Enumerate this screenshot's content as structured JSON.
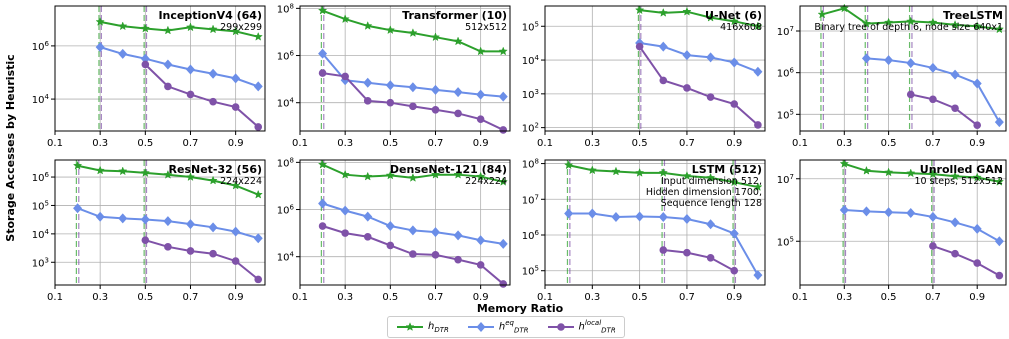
{
  "figure": {
    "ylabel": "Storage Accesses by Heuristic",
    "xlabel": "Memory Ratio"
  },
  "legend": {
    "items": [
      {
        "base": "h",
        "sub": "DTR",
        "sup": "",
        "color": "#2ca02c",
        "marker": "star"
      },
      {
        "base": "h",
        "sub": "DTR",
        "sup": "eq",
        "color": "#6b8ee8",
        "marker": "diamond"
      },
      {
        "base": "h",
        "sub": "DTR",
        "sup": "local",
        "color": "#7f52a8",
        "marker": "circle"
      }
    ]
  },
  "chart_data": [
    {
      "type": "line",
      "title": "InceptionV4 (64)",
      "subtitle": [
        "299x299"
      ],
      "yscale": "log",
      "ylim_exp": [
        2.8,
        7.5
      ],
      "yticks": [
        {
          "exp": 4,
          "label": "10^4"
        },
        {
          "exp": 6,
          "label": "10^6"
        }
      ],
      "xticks": [
        "0.1",
        "0.3",
        "0.5",
        "0.7",
        "0.9"
      ],
      "xlim": [
        0.1,
        1.03
      ],
      "vlines": [
        0.3,
        0.5
      ],
      "series": [
        {
          "name": "h_DTR",
          "color": "#2ca02c",
          "marker": "star",
          "x": [
            0.3,
            0.4,
            0.5,
            0.6,
            0.7,
            0.8,
            0.9,
            1.0
          ],
          "y": [
            8000000,
            5500000,
            4500000,
            3800000,
            5000000,
            4200000,
            3500000,
            2200000
          ]
        },
        {
          "name": "h_DTR^eq",
          "color": "#6b8ee8",
          "marker": "diamond",
          "x": [
            0.3,
            0.4,
            0.5,
            0.6,
            0.7,
            0.8,
            0.9,
            1.0
          ],
          "y": [
            900000,
            500000,
            330000,
            200000,
            130000,
            90000,
            60000,
            30000
          ]
        },
        {
          "name": "h_DTR^local",
          "color": "#7f52a8",
          "marker": "circle",
          "x": [
            0.5,
            0.6,
            0.7,
            0.8,
            0.9,
            1.0
          ],
          "y": [
            200000,
            30000,
            15000,
            8000,
            5000,
            900
          ]
        }
      ]
    },
    {
      "type": "line",
      "title": "Transformer (10)",
      "subtitle": [
        "512x512"
      ],
      "yscale": "log",
      "ylim_exp": [
        2.8,
        8.1
      ],
      "yticks": [
        {
          "exp": 4,
          "label": "10^4"
        },
        {
          "exp": 6,
          "label": "10^6"
        },
        {
          "exp": 8,
          "label": "10^8"
        }
      ],
      "xticks": [
        "0.1",
        "0.3",
        "0.5",
        "0.7",
        "0.9"
      ],
      "xlim": [
        0.1,
        1.03
      ],
      "vlines": [
        0.2
      ],
      "series": [
        {
          "name": "h_DTR",
          "color": "#2ca02c",
          "marker": "star",
          "x": [
            0.2,
            0.3,
            0.4,
            0.5,
            0.6,
            0.7,
            0.8,
            0.9,
            1.0
          ],
          "y": [
            80000000,
            35000000,
            18000000,
            12000000,
            9000000,
            6000000,
            4000000,
            1500000,
            1500000
          ]
        },
        {
          "name": "h_DTR^eq",
          "color": "#6b8ee8",
          "marker": "diamond",
          "x": [
            0.2,
            0.3,
            0.4,
            0.5,
            0.6,
            0.7,
            0.8,
            0.9,
            1.0
          ],
          "y": [
            1200000,
            90000,
            70000,
            55000,
            45000,
            35000,
            28000,
            22000,
            18000
          ]
        },
        {
          "name": "h_DTR^local",
          "color": "#7f52a8",
          "marker": "circle",
          "x": [
            0.2,
            0.3,
            0.4,
            0.5,
            0.6,
            0.7,
            0.8,
            0.9,
            1.0
          ],
          "y": [
            180000,
            130000,
            12000,
            10000,
            7000,
            5000,
            3500,
            2000,
            700
          ]
        }
      ]
    },
    {
      "type": "line",
      "title": "U-Net (6)",
      "subtitle": [
        "416x608"
      ],
      "yscale": "log",
      "ylim_exp": [
        1.9,
        5.6
      ],
      "yticks": [
        {
          "exp": 2,
          "label": "10^2"
        },
        {
          "exp": 3,
          "label": "10^3"
        },
        {
          "exp": 4,
          "label": "10^4"
        },
        {
          "exp": 5,
          "label": "10^5"
        }
      ],
      "xticks": [
        "0.1",
        "0.3",
        "0.5",
        "0.7",
        "0.9"
      ],
      "xlim": [
        0.1,
        1.03
      ],
      "vlines": [
        0.5
      ],
      "series": [
        {
          "name": "h_DTR",
          "color": "#2ca02c",
          "marker": "star",
          "x": [
            0.5,
            0.6,
            0.7,
            0.8,
            0.9,
            1.0
          ],
          "y": [
            300000,
            250000,
            270000,
            180000,
            140000,
            100000
          ]
        },
        {
          "name": "h_DTR^eq",
          "color": "#6b8ee8",
          "marker": "diamond",
          "x": [
            0.5,
            0.6,
            0.7,
            0.8,
            0.9,
            1.0
          ],
          "y": [
            32000,
            25000,
            14000,
            12000,
            8500,
            4500
          ]
        },
        {
          "name": "h_DTR^local",
          "color": "#7f52a8",
          "marker": "circle",
          "x": [
            0.5,
            0.6,
            0.7,
            0.8,
            0.9,
            1.0
          ],
          "y": [
            25000,
            2500,
            1500,
            800,
            500,
            120
          ]
        }
      ]
    },
    {
      "type": "line",
      "title": "TreeLSTM",
      "subtitle": [
        "Binary tree of depth 6, node size 640x1"
      ],
      "yscale": "log",
      "ylim_exp": [
        4.6,
        7.6
      ],
      "yticks": [
        {
          "exp": 5,
          "label": "10^5"
        },
        {
          "exp": 6,
          "label": "10^6"
        },
        {
          "exp": 7,
          "label": "10^7"
        }
      ],
      "xticks": [
        "0.1",
        "0.3",
        "0.5",
        "0.7",
        "0.9"
      ],
      "xlim": [
        0.1,
        1.03
      ],
      "vlines": [
        0.2,
        0.4,
        0.6
      ],
      "series": [
        {
          "name": "h_DTR",
          "color": "#2ca02c",
          "marker": "star",
          "x": [
            0.2,
            0.3,
            0.4,
            0.5,
            0.6,
            0.7,
            0.8,
            0.9,
            1.0
          ],
          "y": [
            25000000,
            35000000,
            15000000,
            16000000,
            17000000,
            16000000,
            14000000,
            13000000,
            11000000
          ]
        },
        {
          "name": "h_DTR^eq",
          "color": "#6b8ee8",
          "marker": "diamond",
          "x": [
            0.4,
            0.5,
            0.6,
            0.7,
            0.8,
            0.9,
            1.0
          ],
          "y": [
            2200000,
            2000000,
            1700000,
            1300000,
            900000,
            550000,
            65000
          ]
        },
        {
          "name": "h_DTR^local",
          "color": "#7f52a8",
          "marker": "circle",
          "x": [
            0.6,
            0.7,
            0.8,
            0.9
          ],
          "y": [
            300000,
            230000,
            140000,
            55000
          ]
        }
      ]
    },
    {
      "type": "line",
      "title": "ResNet-32 (56)",
      "subtitle": [
        "224x224"
      ],
      "yscale": "log",
      "ylim_exp": [
        2.2,
        6.6
      ],
      "yticks": [
        {
          "exp": 3,
          "label": "10^3"
        },
        {
          "exp": 4,
          "label": "10^4"
        },
        {
          "exp": 5,
          "label": "10^5"
        },
        {
          "exp": 6,
          "label": "10^6"
        }
      ],
      "xticks": [
        "0.1",
        "0.3",
        "0.5",
        "0.7",
        "0.9"
      ],
      "xlim": [
        0.1,
        1.03
      ],
      "vlines": [
        0.2,
        0.5
      ],
      "series": [
        {
          "name": "h_DTR",
          "color": "#2ca02c",
          "marker": "star",
          "x": [
            0.2,
            0.3,
            0.4,
            0.5,
            0.6,
            0.7,
            0.8,
            0.9,
            1.0
          ],
          "y": [
            2500000,
            1700000,
            1600000,
            1400000,
            1200000,
            1000000,
            750000,
            500000,
            240000
          ]
        },
        {
          "name": "h_DTR^eq",
          "color": "#6b8ee8",
          "marker": "diamond",
          "x": [
            0.2,
            0.3,
            0.4,
            0.5,
            0.6,
            0.7,
            0.8,
            0.9,
            1.0
          ],
          "y": [
            80000,
            40000,
            35000,
            32000,
            28000,
            22000,
            17000,
            12000,
            7000
          ]
        },
        {
          "name": "h_DTR^local",
          "color": "#7f52a8",
          "marker": "circle",
          "x": [
            0.5,
            0.6,
            0.7,
            0.8,
            0.9,
            1.0
          ],
          "y": [
            6000,
            3500,
            2500,
            2000,
            1100,
            250
          ]
        }
      ]
    },
    {
      "type": "line",
      "title": "DenseNet-121 (84)",
      "subtitle": [
        "224x224"
      ],
      "yscale": "log",
      "ylim_exp": [
        2.8,
        8.1
      ],
      "yticks": [
        {
          "exp": 4,
          "label": "10^4"
        },
        {
          "exp": 6,
          "label": "10^6"
        },
        {
          "exp": 8,
          "label": "10^8"
        }
      ],
      "xticks": [
        "0.1",
        "0.3",
        "0.5",
        "0.7",
        "0.9"
      ],
      "xlim": [
        0.1,
        1.03
      ],
      "vlines": [
        0.2
      ],
      "series": [
        {
          "name": "h_DTR",
          "color": "#2ca02c",
          "marker": "star",
          "x": [
            0.2,
            0.3,
            0.4,
            0.5,
            0.6,
            0.7,
            0.8,
            0.9,
            1.0
          ],
          "y": [
            80000000,
            30000000,
            25000000,
            28000000,
            22000000,
            30000000,
            30000000,
            25000000,
            15000000
          ]
        },
        {
          "name": "h_DTR^eq",
          "color": "#6b8ee8",
          "marker": "diamond",
          "x": [
            0.2,
            0.3,
            0.4,
            0.5,
            0.6,
            0.7,
            0.8,
            0.9,
            1.0
          ],
          "y": [
            1800000,
            900000,
            500000,
            200000,
            130000,
            110000,
            80000,
            50000,
            35000
          ]
        },
        {
          "name": "h_DTR^local",
          "color": "#7f52a8",
          "marker": "circle",
          "x": [
            0.2,
            0.3,
            0.4,
            0.5,
            0.6,
            0.7,
            0.8,
            0.9,
            1.0
          ],
          "y": [
            200000,
            100000,
            70000,
            30000,
            13000,
            12000,
            7500,
            4500,
            700
          ]
        }
      ]
    },
    {
      "type": "line",
      "title": "LSTM (512)",
      "subtitle": [
        "Input dimension 512,",
        "Hidden dimension 1700,",
        "Sequence length 128"
      ],
      "yscale": "log",
      "ylim_exp": [
        4.6,
        8.1
      ],
      "yticks": [
        {
          "exp": 5,
          "label": "10^5"
        },
        {
          "exp": 6,
          "label": "10^6"
        },
        {
          "exp": 7,
          "label": "10^7"
        },
        {
          "exp": 8,
          "label": "10^8"
        }
      ],
      "xticks": [
        "0.1",
        "0.3",
        "0.5",
        "0.7",
        "0.9"
      ],
      "xlim": [
        0.1,
        1.03
      ],
      "vlines": [
        0.2,
        0.6,
        0.9
      ],
      "series": [
        {
          "name": "h_DTR",
          "color": "#2ca02c",
          "marker": "star",
          "x": [
            0.2,
            0.3,
            0.4,
            0.5,
            0.6,
            0.7,
            0.8,
            0.9,
            1.0
          ],
          "y": [
            90000000,
            65000000,
            60000000,
            55000000,
            55000000,
            45000000,
            40000000,
            30000000,
            22000000
          ]
        },
        {
          "name": "h_DTR^eq",
          "color": "#6b8ee8",
          "marker": "diamond",
          "x": [
            0.2,
            0.3,
            0.4,
            0.5,
            0.6,
            0.7,
            0.8,
            0.9,
            1.0
          ],
          "y": [
            4000000,
            4000000,
            3200000,
            3300000,
            3200000,
            2800000,
            2000000,
            1100000,
            75000
          ]
        },
        {
          "name": "h_DTR^local",
          "color": "#7f52a8",
          "marker": "circle",
          "x": [
            0.6,
            0.7,
            0.8,
            0.9
          ],
          "y": [
            380000,
            320000,
            230000,
            100000
          ]
        }
      ]
    },
    {
      "type": "line",
      "title": "Unrolled GAN",
      "subtitle": [
        "10 steps, 512x512"
      ],
      "yscale": "log",
      "ylim_exp": [
        3.6,
        7.6
      ],
      "yticks": [
        {
          "exp": 5,
          "label": "10^5"
        },
        {
          "exp": 7,
          "label": "10^7"
        }
      ],
      "xticks": [
        "0.1",
        "0.3",
        "0.5",
        "0.7",
        "0.9"
      ],
      "xlim": [
        0.1,
        1.03
      ],
      "vlines": [
        0.3,
        0.7
      ],
      "series": [
        {
          "name": "h_DTR",
          "color": "#2ca02c",
          "marker": "star",
          "x": [
            0.3,
            0.4,
            0.5,
            0.6,
            0.7,
            0.8,
            0.9,
            1.0
          ],
          "y": [
            30000000,
            18000000,
            16000000,
            15000000,
            14000000,
            12000000,
            11000000,
            8000000
          ]
        },
        {
          "name": "h_DTR^eq",
          "color": "#6b8ee8",
          "marker": "diamond",
          "x": [
            0.3,
            0.4,
            0.5,
            0.6,
            0.7,
            0.8,
            0.9,
            1.0
          ],
          "y": [
            1000000,
            900000,
            850000,
            800000,
            600000,
            400000,
            250000,
            100000
          ]
        },
        {
          "name": "h_DTR^local",
          "color": "#7f52a8",
          "marker": "circle",
          "x": [
            0.7,
            0.8,
            0.9,
            1.0
          ],
          "y": [
            70000,
            40000,
            20000,
            8000
          ]
        }
      ]
    }
  ]
}
